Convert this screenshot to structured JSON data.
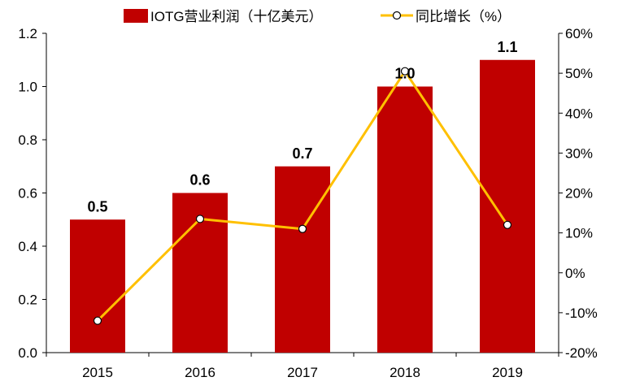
{
  "chart_data": {
    "type": "bar",
    "categories": [
      "2015",
      "2016",
      "2017",
      "2018",
      "2019"
    ],
    "series": [
      {
        "name": "IOTG营业利润（十亿美元）",
        "type": "bar",
        "axis": "left",
        "values": [
          0.5,
          0.6,
          0.7,
          1.0,
          1.1
        ],
        "data_labels": [
          "0.5",
          "0.6",
          "0.7",
          "1.0",
          "1.1"
        ],
        "color": "#C00000"
      },
      {
        "name": "同比增长（%）",
        "type": "line",
        "axis": "right",
        "values": [
          -12,
          13.5,
          11,
          50.5,
          12
        ],
        "color": "#FFC000"
      }
    ],
    "y_left": {
      "ylim": [
        0,
        1.2
      ],
      "ticks": [
        0,
        0.2,
        0.4,
        0.6,
        0.8,
        1.0,
        1.2
      ],
      "tick_labels": [
        "0.0",
        "0.2",
        "0.4",
        "0.6",
        "0.8",
        "1.0",
        "1.2"
      ]
    },
    "y_right": {
      "ylim": [
        -20,
        60
      ],
      "ticks": [
        -20,
        -10,
        0,
        10,
        20,
        30,
        40,
        50,
        60
      ],
      "tick_labels": [
        "-20%",
        "-10%",
        "0%",
        "10%",
        "20%",
        "30%",
        "40%",
        "50%",
        "60%"
      ]
    },
    "grid": false,
    "legend": "top"
  }
}
